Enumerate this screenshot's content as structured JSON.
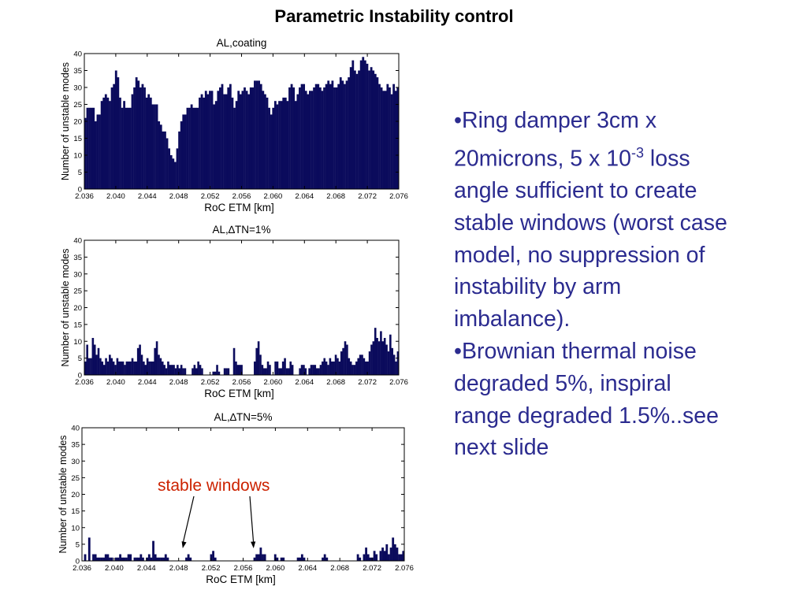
{
  "slide": {
    "title": "Parametric Instability control"
  },
  "bullets": [
    {
      "prefix": "•",
      "text_before": "Ring damper 3cm x 20microns, 5 x 10",
      "superscript": "-3",
      "text_after": " loss angle sufficient to create stable windows (worst case model, no suppression of instability by arm imbalance)."
    },
    {
      "prefix": "•",
      "text_before": "Brownian thermal noise degraded 5%, inspiral range degraded 1.5%..see next slide",
      "superscript": "",
      "text_after": ""
    }
  ],
  "annotation": {
    "text": "stable windows",
    "color": "#cc2200"
  },
  "chart_data": [
    {
      "type": "bar",
      "title": "AL,coating",
      "xlabel": "RoC ETM [km]",
      "ylabel": "Number of unstable modes",
      "xlim": [
        2.036,
        2.076
      ],
      "ylim": [
        0,
        40
      ],
      "xticks": [
        "2.036",
        "2.040",
        "2.044",
        "2.048",
        "2.052",
        "2.056",
        "2.060",
        "2.064",
        "2.068",
        "2.072",
        "2.076"
      ],
      "yticks": [
        "0",
        "5",
        "10",
        "15",
        "20",
        "25",
        "30",
        "35",
        "40"
      ],
      "bar_color": "#0b0b5c",
      "values": [
        21,
        24,
        24,
        24,
        24,
        20,
        22,
        22,
        26,
        27,
        28,
        27,
        26,
        30,
        31,
        35,
        33,
        27,
        24,
        26,
        24,
        24,
        24,
        28,
        30,
        33,
        32,
        30,
        31,
        30,
        27,
        28,
        27,
        25,
        25,
        25,
        20,
        19,
        17,
        17,
        15,
        12,
        10,
        9,
        8,
        12,
        17,
        20,
        22,
        22,
        24,
        24,
        25,
        24,
        24,
        24,
        27,
        28,
        27,
        29,
        28,
        29,
        29,
        25,
        26,
        29,
        30,
        31,
        28,
        28,
        30,
        31,
        27,
        24,
        26,
        29,
        28,
        29,
        30,
        29,
        28,
        30,
        30,
        32,
        32,
        32,
        31,
        29,
        28,
        27,
        24,
        22,
        24,
        26,
        25,
        26,
        26,
        27,
        27,
        26,
        30,
        31,
        30,
        26,
        28,
        30,
        31,
        31,
        29,
        28,
        29,
        29,
        30,
        31,
        31,
        30,
        29,
        30,
        31,
        32,
        31,
        32,
        30,
        30,
        31,
        33,
        32,
        31,
        32,
        33,
        36,
        38,
        35,
        34,
        35,
        38,
        39,
        38,
        37,
        35,
        36,
        35,
        34,
        33,
        31,
        30,
        29,
        29,
        31,
        30,
        28,
        31,
        29,
        30
      ]
    },
    {
      "type": "bar",
      "title": "AL,∆TN=1%",
      "xlabel": "RoC ETM [km]",
      "ylabel": "Number of unstable modes",
      "xlim": [
        2.036,
        2.076
      ],
      "ylim": [
        0,
        40
      ],
      "xticks": [
        "2.036",
        "2.040",
        "2.044",
        "2.048",
        "2.052",
        "2.056",
        "2.060",
        "2.064",
        "2.068",
        "2.072",
        "2.076"
      ],
      "yticks": [
        "0",
        "5",
        "10",
        "15",
        "20",
        "25",
        "30",
        "35",
        "40"
      ],
      "bar_color": "#0b0b5c",
      "values": [
        4,
        9,
        5,
        5,
        11,
        9,
        6,
        8,
        5,
        4,
        3,
        5,
        4,
        6,
        5,
        4,
        3,
        5,
        4,
        4,
        4,
        3,
        4,
        4,
        4,
        5,
        4,
        4,
        8,
        9,
        6,
        4,
        3,
        5,
        4,
        4,
        4,
        8,
        10,
        6,
        5,
        4,
        3,
        2,
        4,
        3,
        3,
        3,
        2,
        3,
        2,
        3,
        2,
        2,
        0,
        0,
        0,
        2,
        3,
        2,
        4,
        3,
        2,
        0,
        0,
        0,
        0,
        0,
        1,
        1,
        3,
        1,
        0,
        0,
        2,
        2,
        2,
        0,
        0,
        8,
        4,
        3,
        3,
        3,
        0,
        0,
        0,
        0,
        0,
        0,
        4,
        8,
        10,
        6,
        3,
        2,
        2,
        4,
        3,
        0,
        0,
        4,
        4,
        2,
        2,
        4,
        5,
        2,
        2,
        4,
        3,
        0,
        0,
        0,
        2,
        3,
        3,
        2,
        0,
        2,
        3,
        3,
        3,
        2,
        2,
        3,
        4,
        5,
        4,
        3,
        5,
        4,
        4,
        6,
        5,
        4,
        7,
        8,
        10,
        9,
        5,
        4,
        3,
        3,
        4,
        5,
        6,
        6,
        5,
        4,
        4,
        7,
        9,
        10,
        14,
        11,
        10,
        13,
        10,
        11,
        9,
        7,
        12,
        8,
        6,
        4,
        7
      ]
    },
    {
      "type": "bar",
      "title": "AL,∆TN=5%",
      "xlabel": "RoC ETM [km]",
      "ylabel": "Number of unstable modes",
      "xlim": [
        2.036,
        2.076
      ],
      "ylim": [
        0,
        40
      ],
      "xticks": [
        "2.036",
        "2.040",
        "2.044",
        "2.048",
        "2.052",
        "2.056",
        "2.060",
        "2.064",
        "2.068",
        "2.072",
        "2.076"
      ],
      "yticks": [
        "0",
        "5",
        "10",
        "15",
        "20",
        "25",
        "30",
        "35",
        "40"
      ],
      "bar_color": "#0b0b5c",
      "values": [
        0,
        2,
        0,
        7,
        0,
        2,
        2,
        1,
        1,
        1,
        1,
        2,
        2,
        1,
        1,
        0,
        1,
        1,
        2,
        1,
        1,
        1,
        2,
        2,
        0,
        1,
        1,
        1,
        2,
        1,
        0,
        1,
        2,
        1,
        6,
        2,
        1,
        1,
        1,
        1,
        2,
        1,
        0,
        0,
        0,
        0,
        0,
        0,
        0,
        0,
        1,
        2,
        1,
        0,
        0,
        0,
        0,
        0,
        0,
        0,
        0,
        0,
        2,
        3,
        1,
        0,
        0,
        0,
        0,
        0,
        0,
        0,
        0,
        0,
        0,
        0,
        0,
        0,
        0,
        0,
        0,
        0,
        0,
        1,
        2,
        2,
        4,
        2,
        2,
        0,
        0,
        0,
        0,
        2,
        1,
        0,
        1,
        1,
        0,
        0,
        0,
        0,
        0,
        0,
        1,
        1,
        2,
        1,
        0,
        0,
        0,
        0,
        0,
        0,
        0,
        0,
        1,
        2,
        1,
        0,
        0,
        0,
        0,
        0,
        0,
        0,
        0,
        0,
        0,
        0,
        0,
        0,
        0,
        2,
        1,
        0,
        2,
        4,
        2,
        1,
        1,
        3,
        2,
        0,
        3,
        4,
        3,
        5,
        2,
        4,
        7,
        5,
        4,
        2,
        2,
        3
      ],
      "annotation_points": [
        2.0485,
        2.0573
      ]
    }
  ]
}
